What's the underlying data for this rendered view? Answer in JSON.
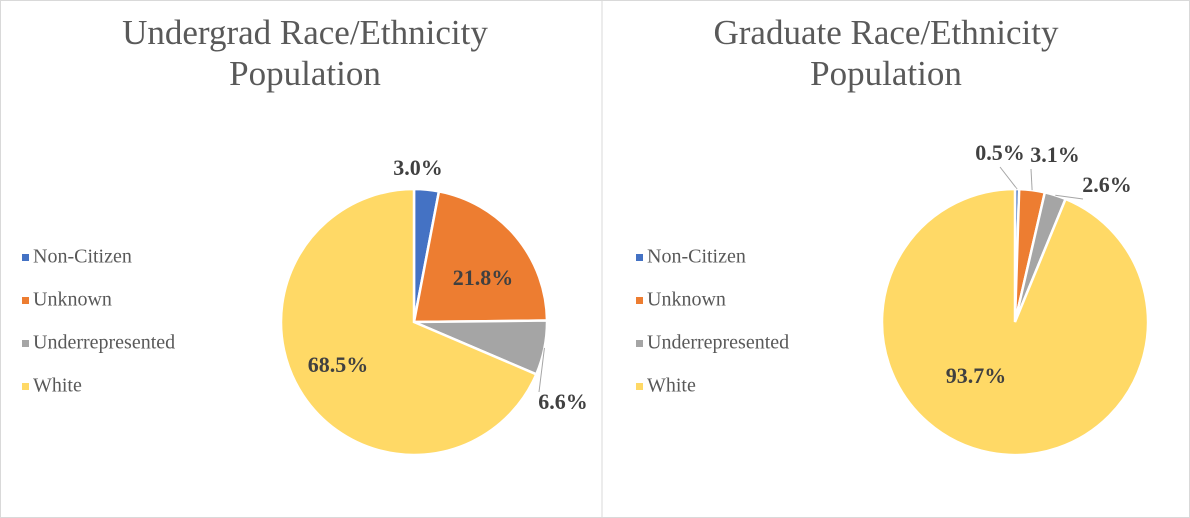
{
  "chart_data": [
    {
      "type": "pie",
      "title": "Undergrad Race/Ethnicity Population",
      "categories": [
        "Non-Citizen",
        "Unknown",
        "Underrepresented",
        "White"
      ],
      "values": [
        3.0,
        21.8,
        6.6,
        68.5
      ],
      "value_labels": [
        "3.0%",
        "21.8%",
        "6.6%",
        "68.5%"
      ],
      "colors": [
        "#4472c4",
        "#ed7d31",
        "#a5a5a5",
        "#ffd966"
      ],
      "legend": "left"
    },
    {
      "type": "pie",
      "title": "Graduate Race/Ethnicity Population",
      "categories": [
        "Non-Citizen",
        "Unknown",
        "Underrepresented",
        "White"
      ],
      "values": [
        0.5,
        3.1,
        2.6,
        93.7
      ],
      "value_labels": [
        "0.5%",
        "3.1%",
        "2.6%",
        "93.7%"
      ],
      "colors": [
        "#4472c4",
        "#ed7d31",
        "#a5a5a5",
        "#ffd966"
      ],
      "legend": "left"
    }
  ]
}
